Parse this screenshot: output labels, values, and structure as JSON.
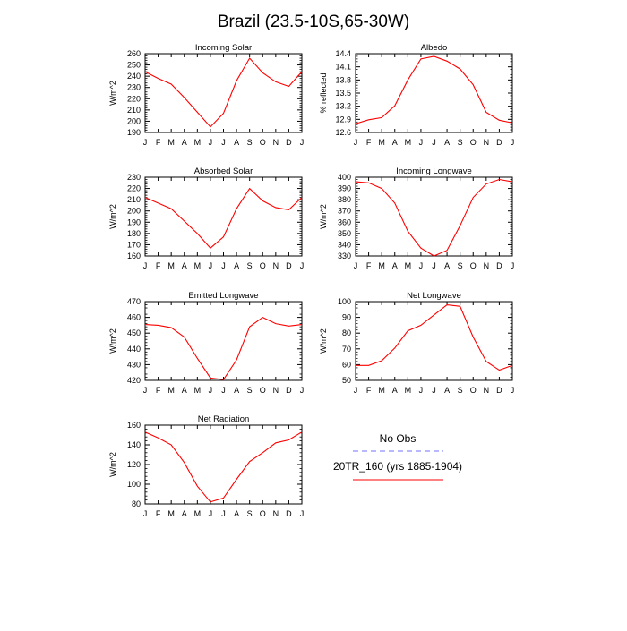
{
  "figure": {
    "title": "Brazil (23.5-10S,65-30W)"
  },
  "legend": {
    "entries": [
      {
        "label": "No Obs",
        "color": "#7070ff",
        "style": "dashed"
      },
      {
        "label": "20TR_160 (yrs 1885-1904)",
        "color": "#ff0000",
        "style": "solid"
      }
    ]
  },
  "chart_data": [
    {
      "type": "line",
      "title": "Incoming Solar",
      "ylabel": "W/m^2",
      "xlabel": "",
      "categories": [
        "J",
        "F",
        "M",
        "A",
        "M",
        "J",
        "J",
        "A",
        "S",
        "O",
        "N",
        "D",
        "J"
      ],
      "ylim": [
        190,
        260
      ],
      "yticks": [
        190,
        200,
        210,
        220,
        230,
        240,
        250,
        260
      ],
      "series": [
        {
          "values": [
            244,
            238,
            233,
            221,
            208,
            195,
            207,
            236,
            256,
            243,
            235,
            231,
            244
          ]
        }
      ]
    },
    {
      "type": "line",
      "title": "Albedo",
      "ylabel": "% reflected",
      "xlabel": "",
      "categories": [
        "J",
        "F",
        "M",
        "A",
        "M",
        "J",
        "J",
        "A",
        "S",
        "O",
        "N",
        "D",
        "J"
      ],
      "ylim": [
        12.6,
        14.4
      ],
      "yticks": [
        12.6,
        12.9,
        13.2,
        13.5,
        13.8,
        14.1,
        14.4
      ],
      "series": [
        {
          "values": [
            12.8,
            12.89,
            12.94,
            13.21,
            13.8,
            14.28,
            14.34,
            14.23,
            14.05,
            13.69,
            13.06,
            12.88,
            12.82
          ]
        }
      ]
    },
    {
      "type": "line",
      "title": "Absorbed Solar",
      "ylabel": "W/m^2",
      "xlabel": "",
      "categories": [
        "J",
        "F",
        "M",
        "A",
        "M",
        "J",
        "J",
        "A",
        "S",
        "O",
        "N",
        "D",
        "J"
      ],
      "ylim": [
        160,
        230
      ],
      "yticks": [
        160,
        170,
        180,
        190,
        200,
        210,
        220,
        230
      ],
      "series": [
        {
          "values": [
            212,
            207,
            202,
            191,
            180,
            167,
            177,
            202,
            220,
            209,
            203,
            201,
            212
          ]
        }
      ]
    },
    {
      "type": "line",
      "title": "Incoming Longwave",
      "ylabel": "W/m^2",
      "xlabel": "",
      "categories": [
        "J",
        "F",
        "M",
        "A",
        "M",
        "J",
        "J",
        "A",
        "S",
        "O",
        "N",
        "D",
        "J"
      ],
      "ylim": [
        330,
        400
      ],
      "yticks": [
        330,
        340,
        350,
        360,
        370,
        380,
        390,
        400
      ],
      "series": [
        {
          "values": [
            396,
            395,
            390,
            377,
            352,
            337,
            330,
            335,
            357,
            382,
            394,
            398,
            396
          ]
        }
      ]
    },
    {
      "type": "line",
      "title": "Emitted Longwave",
      "ylabel": "W/m^2",
      "xlabel": "",
      "categories": [
        "J",
        "F",
        "M",
        "A",
        "M",
        "J",
        "J",
        "A",
        "S",
        "O",
        "N",
        "D",
        "J"
      ],
      "ylim": [
        420,
        470
      ],
      "yticks": [
        420,
        430,
        440,
        450,
        460,
        470
      ],
      "series": [
        {
          "values": [
            455.5,
            455,
            453.5,
            447.5,
            434,
            421.5,
            420.5,
            433,
            454,
            460,
            456,
            454.5,
            455.5
          ]
        }
      ]
    },
    {
      "type": "line",
      "title": "Net Longwave",
      "ylabel": "W/m^2",
      "xlabel": "",
      "categories": [
        "J",
        "F",
        "M",
        "A",
        "M",
        "J",
        "J",
        "A",
        "S",
        "O",
        "N",
        "D",
        "J"
      ],
      "ylim": [
        50,
        100
      ],
      "yticks": [
        50,
        60,
        70,
        80,
        90,
        100
      ],
      "series": [
        {
          "values": [
            59.5,
            59.5,
            62.5,
            70.5,
            81.5,
            85,
            91.5,
            98,
            97,
            77.5,
            62,
            56.5,
            59.5
          ]
        }
      ]
    },
    {
      "type": "line",
      "title": "Net Radiation",
      "ylabel": "W/m^2",
      "xlabel": "",
      "categories": [
        "J",
        "F",
        "M",
        "A",
        "M",
        "J",
        "J",
        "A",
        "S",
        "O",
        "N",
        "D",
        "J"
      ],
      "ylim": [
        80,
        160
      ],
      "yticks": [
        80,
        100,
        120,
        140,
        160
      ],
      "series": [
        {
          "values": [
            153,
            147,
            140,
            122,
            98,
            82,
            86,
            105,
            123,
            132,
            142,
            145,
            153
          ]
        }
      ]
    }
  ]
}
